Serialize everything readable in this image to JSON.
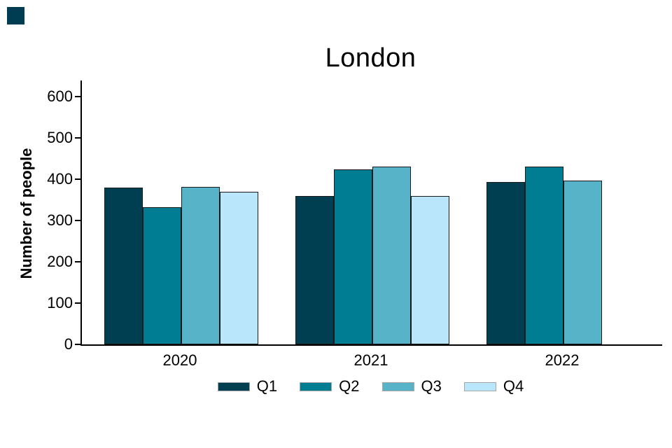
{
  "title": "London",
  "corner_marker": {
    "visible": true,
    "color": "#003d52"
  },
  "colors": {
    "axis": "#000000",
    "text": "#000000",
    "bar_border": "#1a1a1a",
    "legend_swatch_border": "#a6a6a6",
    "background": "#ffffff"
  },
  "chart_data": {
    "type": "bar",
    "title": "London",
    "xlabel": "",
    "ylabel": "Number of people",
    "categories": [
      "2020",
      "2021",
      "2022"
    ],
    "series": [
      {
        "name": "Q1",
        "color": "#003e52",
        "values": [
          379,
          359,
          393
        ]
      },
      {
        "name": "Q2",
        "color": "#007d92",
        "values": [
          333,
          424,
          431
        ]
      },
      {
        "name": "Q3",
        "color": "#57b4c8",
        "values": [
          382,
          431,
          396
        ]
      },
      {
        "name": "Q4",
        "color": "#b9e6fb",
        "values": [
          370,
          359,
          null
        ]
      }
    ],
    "ylim": [
      0,
      600
    ],
    "yticks": [
      0,
      100,
      200,
      300,
      400,
      500,
      600
    ],
    "grid": false,
    "legend_position": "bottom",
    "legend_labels": [
      "Q1",
      "Q2",
      "Q3",
      "Q4"
    ]
  }
}
